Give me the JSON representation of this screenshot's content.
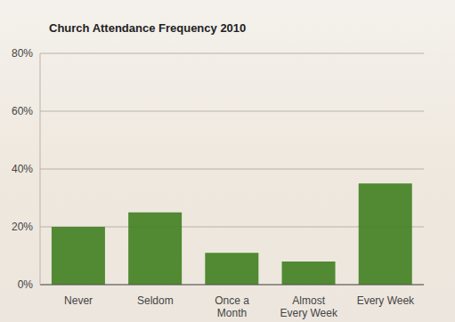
{
  "chart_data": {
    "type": "bar",
    "title": "Church Attendance Frequency 2010",
    "categories": [
      "Never",
      "Seldom",
      "Once a Month",
      "Almost Every Week",
      "Every Week"
    ],
    "values": [
      20,
      25,
      11,
      8,
      35
    ],
    "color": "#3f7f1f",
    "ylim": [
      0,
      80
    ],
    "yticks": [
      {
        "value": 0,
        "label": "0%"
      },
      {
        "value": 20,
        "label": "20%"
      },
      {
        "value": 40,
        "label": "40%"
      },
      {
        "value": 60,
        "label": "60%"
      },
      {
        "value": 80,
        "label": "80%"
      }
    ],
    "grid": true
  }
}
